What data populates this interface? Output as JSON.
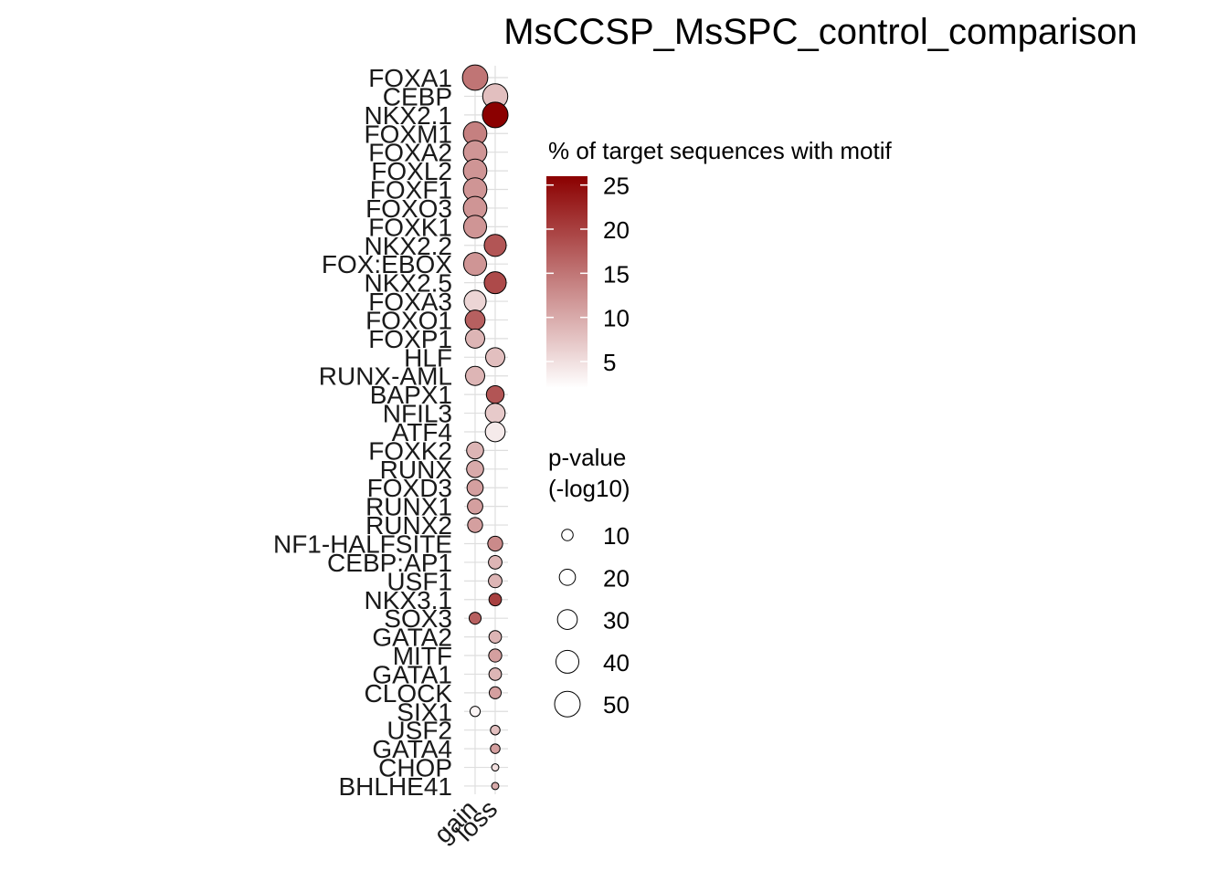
{
  "chart_data": {
    "type": "scatter",
    "title": "MsCCSP_MsSPC_control_comparison",
    "xlabel": "",
    "ylabel": "",
    "x_categories": [
      "gain",
      "loss"
    ],
    "y_categories": [
      "FOXA1",
      "CEBP",
      "NKX2.1",
      "FOXM1",
      "FOXA2",
      "FOXL2",
      "FOXF1",
      "FOXO3",
      "FOXK1",
      "NKX2.2",
      "FOX:EBOX",
      "NKX2.5",
      "FOXA3",
      "FOXO1",
      "FOXP1",
      "HLF",
      "RUNX-AML",
      "BAPX1",
      "NFIL3",
      "ATF4",
      "FOXK2",
      "RUNX",
      "FOXD3",
      "RUNX1",
      "RUNX2",
      "NF1-HALFSITE",
      "CEBP:AP1",
      "USF1",
      "NKX3.1",
      "SOX3",
      "GATA2",
      "MITF",
      "GATA1",
      "CLOCK",
      "SIX1",
      "USF2",
      "GATA4",
      "CHOP",
      "BHLHE41"
    ],
    "points": [
      {
        "motif": "FOXA1",
        "group": "gain",
        "pct": 15,
        "pvalue": 49
      },
      {
        "motif": "CEBP",
        "group": "loss",
        "pct": 8,
        "pvalue": 48
      },
      {
        "motif": "NKX2.1",
        "group": "loss",
        "pct": 26,
        "pvalue": 50
      },
      {
        "motif": "FOXM1",
        "group": "gain",
        "pct": 14,
        "pvalue": 42
      },
      {
        "motif": "FOXA2",
        "group": "gain",
        "pct": 12,
        "pvalue": 42
      },
      {
        "motif": "FOXL2",
        "group": "gain",
        "pct": 12,
        "pvalue": 42
      },
      {
        "motif": "FOXF1",
        "group": "gain",
        "pct": 12,
        "pvalue": 42
      },
      {
        "motif": "FOXO3",
        "group": "gain",
        "pct": 12,
        "pvalue": 42
      },
      {
        "motif": "FOXK1",
        "group": "gain",
        "pct": 12,
        "pvalue": 40
      },
      {
        "motif": "NKX2.2",
        "group": "loss",
        "pct": 18,
        "pvalue": 37
      },
      {
        "motif": "FOX:EBOX",
        "group": "gain",
        "pct": 12,
        "pvalue": 40
      },
      {
        "motif": "NKX2.5",
        "group": "loss",
        "pct": 19,
        "pvalue": 37
      },
      {
        "motif": "FOXA3",
        "group": "gain",
        "pct": 6,
        "pvalue": 37
      },
      {
        "motif": "FOXO1",
        "group": "gain",
        "pct": 17,
        "pvalue": 30
      },
      {
        "motif": "FOXP1",
        "group": "gain",
        "pct": 9,
        "pvalue": 28
      },
      {
        "motif": "HLF",
        "group": "loss",
        "pct": 8,
        "pvalue": 28
      },
      {
        "motif": "RUNX-AML",
        "group": "gain",
        "pct": 9,
        "pvalue": 28
      },
      {
        "motif": "BAPX1",
        "group": "loss",
        "pct": 18,
        "pvalue": 24
      },
      {
        "motif": "NFIL3",
        "group": "loss",
        "pct": 7,
        "pvalue": 30
      },
      {
        "motif": "ATF4",
        "group": "loss",
        "pct": 4,
        "pvalue": 30
      },
      {
        "motif": "FOXK2",
        "group": "gain",
        "pct": 9,
        "pvalue": 22
      },
      {
        "motif": "RUNX",
        "group": "gain",
        "pct": 10,
        "pvalue": 22
      },
      {
        "motif": "FOXD3",
        "group": "gain",
        "pct": 11,
        "pvalue": 20
      },
      {
        "motif": "RUNX1",
        "group": "gain",
        "pct": 11,
        "pvalue": 18
      },
      {
        "motif": "RUNX2",
        "group": "gain",
        "pct": 11,
        "pvalue": 17
      },
      {
        "motif": "NF1-HALFSITE",
        "group": "loss",
        "pct": 13,
        "pvalue": 17
      },
      {
        "motif": "CEBP:AP1",
        "group": "loss",
        "pct": 9,
        "pvalue": 14
      },
      {
        "motif": "USF1",
        "group": "loss",
        "pct": 9,
        "pvalue": 14
      },
      {
        "motif": "NKX3.1",
        "group": "loss",
        "pct": 20,
        "pvalue": 12
      },
      {
        "motif": "SOX3",
        "group": "gain",
        "pct": 17,
        "pvalue": 11
      },
      {
        "motif": "GATA2",
        "group": "loss",
        "pct": 9,
        "pvalue": 12
      },
      {
        "motif": "MITF",
        "group": "loss",
        "pct": 11,
        "pvalue": 13
      },
      {
        "motif": "GATA1",
        "group": "loss",
        "pct": 9,
        "pvalue": 12
      },
      {
        "motif": "CLOCK",
        "group": "loss",
        "pct": 11,
        "pvalue": 11
      },
      {
        "motif": "SIX1",
        "group": "gain",
        "pct": 3,
        "pvalue": 8
      },
      {
        "motif": "USF2",
        "group": "loss",
        "pct": 8,
        "pvalue": 7
      },
      {
        "motif": "GATA4",
        "group": "loss",
        "pct": 11,
        "pvalue": 7
      },
      {
        "motif": "CHOP",
        "group": "loss",
        "pct": 5,
        "pvalue": 4
      },
      {
        "motif": "BHLHE41",
        "group": "loss",
        "pct": 10,
        "pvalue": 4
      }
    ],
    "color_legend": {
      "title": "% of target sequences with motif",
      "ticks": [
        5,
        10,
        15,
        20,
        25
      ],
      "tick_labels": [
        "5",
        "10",
        "15",
        "20",
        "25"
      ],
      "range": [
        2,
        26
      ],
      "low_color": "#ffffff",
      "high_color": "#8b0000"
    },
    "size_legend": {
      "title_line1": "p-value",
      "title_line2": "(-log10)",
      "values": [
        10,
        20,
        30,
        40,
        50
      ],
      "labels": [
        "10",
        "20",
        "30",
        "40",
        "50"
      ]
    },
    "grid": true,
    "legend_position": "right"
  }
}
